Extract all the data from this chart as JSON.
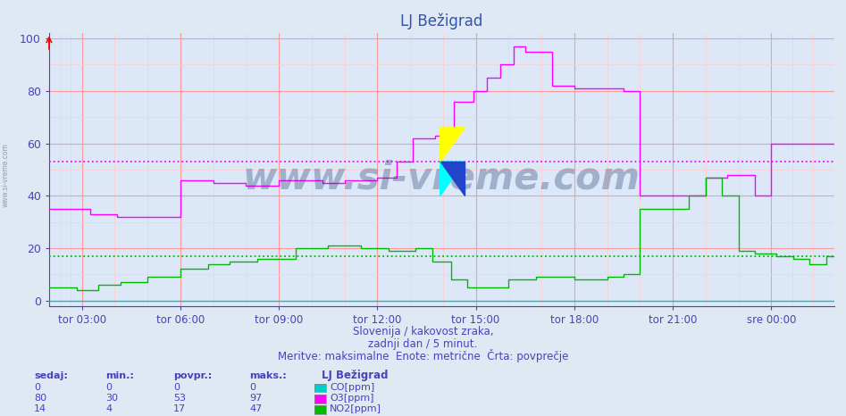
{
  "title": "LJ Bežigrad",
  "bg_color": "#e0e8f4",
  "plot_bg_color": "#dce8f8",
  "grid_color_major": "#ff9999",
  "grid_color_minor": "#ffcccc",
  "x_label_color": "#4444bb",
  "y_label_color": "#4444bb",
  "title_color": "#3355aa",
  "subtitle1": "Slovenija / kakovost zraka,",
  "subtitle2": "zadnji dan / 5 minut.",
  "subtitle3": "Meritve: maksimalne  Enote: metrične  Črta: povprečje",
  "legend_title": "LJ Bežigrad",
  "legend_items": [
    {
      "label": "CO[ppm]",
      "color": "#00cccc",
      "sedaj": 0,
      "min": 0,
      "povpr": 0,
      "maks": 0
    },
    {
      "label": "O3[ppm]",
      "color": "#ff00ff",
      "sedaj": 80,
      "min": 30,
      "povpr": 53,
      "maks": 97
    },
    {
      "label": "NO2[ppm]",
      "color": "#00bb00",
      "sedaj": 14,
      "min": 4,
      "povpr": 17,
      "maks": 47
    }
  ],
  "yticks": [
    0,
    20,
    40,
    60,
    80,
    100
  ],
  "ylim": [
    -2,
    102
  ],
  "xtick_labels": [
    "tor 03:00",
    "tor 06:00",
    "tor 09:00",
    "tor 12:00",
    "tor 15:00",
    "tor 18:00",
    "tor 21:00",
    "sre 00:00"
  ],
  "n_points": 288,
  "o3_avg": 53,
  "no2_avg": 17,
  "o3_color": "#ff00ff",
  "no2_color": "#00bb00",
  "co_color": "#00cccc",
  "watermark_text": "www.si-vreme.com",
  "watermark_color": "#1a3060",
  "watermark_alpha": 0.3,
  "watermark_fontsize": 30
}
